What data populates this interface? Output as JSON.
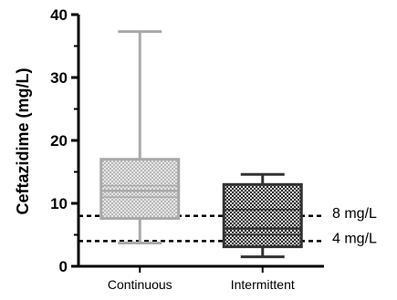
{
  "chart_data": {
    "type": "box",
    "ylabel": "Ceftazidime (mg/L)",
    "ylim": [
      0,
      40
    ],
    "yticks": [
      0,
      10,
      20,
      30,
      40
    ],
    "grid": false,
    "categories": [
      "Continuous",
      "Intermittent"
    ],
    "boxes": [
      {
        "category": "Continuous",
        "whisker_low": 3.7,
        "q1": 7.6,
        "median": 12.0,
        "extra_lines": [
          11.0,
          12.8
        ],
        "q3": 17.0,
        "whisker_high": 37.3,
        "color": "#a9a9a9",
        "fill_pattern": "light-checker"
      },
      {
        "category": "Intermittent",
        "whisker_low": 1.5,
        "q1": 3.1,
        "median": 6.0,
        "extra_lines": [
          5.0,
          9.0
        ],
        "q3": 13.0,
        "whisker_high": 14.6,
        "color": "#333333",
        "fill_pattern": "dark-checker"
      }
    ],
    "reference_lines": [
      {
        "value": 8,
        "label": "8 mg/L",
        "style": "dashed"
      },
      {
        "value": 4,
        "label": "4 mg/L",
        "style": "dashed"
      }
    ]
  }
}
